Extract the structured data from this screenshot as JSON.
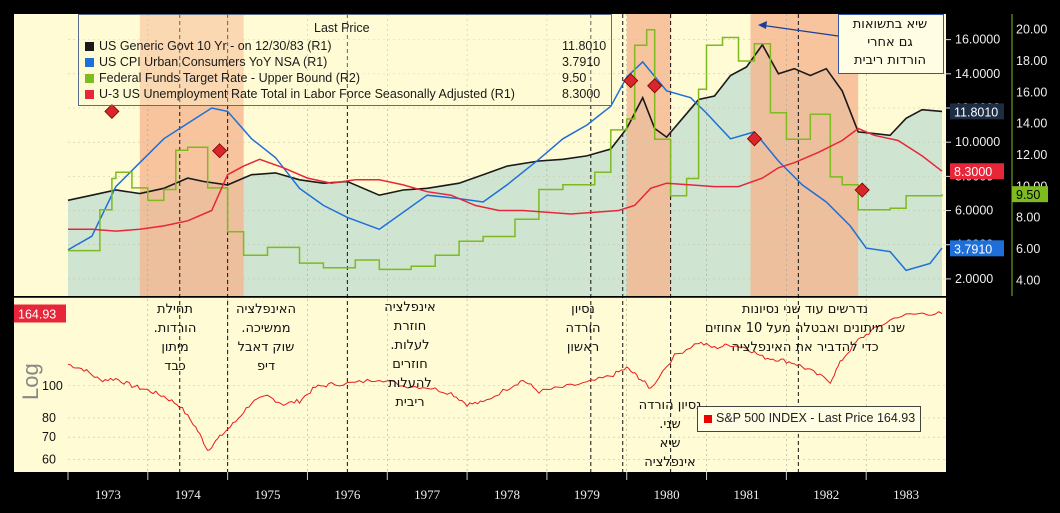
{
  "chart_data": [
    {
      "type": "line",
      "panel": "top",
      "legend_title": "Last Price",
      "x_range": [
        1973.0,
        1984.0
      ],
      "y_left": {
        "min": 1.0,
        "max": 17.5,
        "ticks": [
          "16.0000",
          "14.0000",
          "12.0000",
          "10.0000",
          "8.0000",
          "6.0000",
          "4.0000",
          "2.0000"
        ],
        "tick_values": [
          16,
          14,
          12,
          10,
          8,
          6,
          4,
          2
        ]
      },
      "y_right": {
        "min": 3.0,
        "max": 21.0,
        "ticks": [
          "20.00",
          "18.00",
          "16.00",
          "14.00",
          "12.00",
          "10.00",
          "8.00",
          "6.00",
          "4.00"
        ],
        "tick_values": [
          20,
          18,
          16,
          14,
          12,
          10,
          8,
          6,
          4
        ]
      },
      "recession_bands": [
        [
          1973.9,
          1975.2
        ],
        [
          1980.0,
          1980.55
        ],
        [
          1981.55,
          1982.9
        ]
      ],
      "series": [
        {
          "name": "US Generic Govt 10 Yr - on 12/30/83  (R1)",
          "value_label": "11.8010",
          "color": "#1a1a1a",
          "axis": "left",
          "x": [
            1973.0,
            1973.3,
            1973.6,
            1973.9,
            1974.2,
            1974.5,
            1974.7,
            1975.0,
            1975.3,
            1975.6,
            1975.9,
            1976.2,
            1976.5,
            1976.9,
            1977.2,
            1977.5,
            1977.9,
            1978.2,
            1978.5,
            1978.9,
            1979.2,
            1979.5,
            1979.8,
            1980.0,
            1980.2,
            1980.35,
            1980.5,
            1980.7,
            1980.9,
            1981.1,
            1981.3,
            1981.5,
            1981.7,
            1981.9,
            1982.1,
            1982.3,
            1982.5,
            1982.7,
            1982.9,
            1983.1,
            1983.3,
            1983.5,
            1983.7,
            1983.95
          ],
          "y": [
            6.6,
            6.9,
            7.2,
            7.0,
            7.3,
            7.9,
            7.7,
            7.5,
            8.1,
            8.2,
            7.8,
            7.6,
            7.7,
            6.9,
            7.2,
            7.3,
            7.6,
            8.1,
            8.6,
            8.9,
            9.0,
            9.2,
            9.6,
            10.8,
            12.6,
            10.8,
            10.3,
            11.4,
            12.5,
            12.7,
            13.9,
            14.4,
            15.7,
            14.0,
            14.3,
            13.9,
            14.3,
            13.0,
            10.6,
            10.5,
            10.4,
            11.4,
            11.9,
            11.8
          ]
        },
        {
          "name": "US CPI Urban Consumers YoY NSA  (R1)",
          "value_label": "3.7910",
          "color": "#1e6fd9",
          "axis": "left",
          "x": [
            1973.0,
            1973.3,
            1973.6,
            1973.9,
            1974.2,
            1974.5,
            1974.8,
            1975.0,
            1975.3,
            1975.6,
            1975.9,
            1976.2,
            1976.5,
            1976.9,
            1977.2,
            1977.5,
            1977.9,
            1978.2,
            1978.5,
            1978.9,
            1979.2,
            1979.5,
            1979.8,
            1980.0,
            1980.2,
            1980.5,
            1980.8,
            1981.0,
            1981.3,
            1981.6,
            1981.9,
            1982.2,
            1982.5,
            1982.8,
            1983.0,
            1983.3,
            1983.5,
            1983.8,
            1983.95
          ],
          "y": [
            3.7,
            4.5,
            7.4,
            8.8,
            10.2,
            11.1,
            12.0,
            11.8,
            10.2,
            9.1,
            7.3,
            6.3,
            5.6,
            4.9,
            5.9,
            6.9,
            6.7,
            6.5,
            7.5,
            9.0,
            10.2,
            11.0,
            12.1,
            13.8,
            14.7,
            13.0,
            12.6,
            11.7,
            10.2,
            10.6,
            8.9,
            7.5,
            6.5,
            5.1,
            3.8,
            3.6,
            2.5,
            2.9,
            3.8
          ]
        },
        {
          "name": "Federal Funds Target Rate - Upper Bound  (R2)",
          "value_label": "9.50",
          "color": "#7dbb1e",
          "axis": "right",
          "x": [
            1973.0,
            1973.4,
            1973.55,
            1973.6,
            1973.8,
            1974.0,
            1974.2,
            1974.35,
            1974.5,
            1974.75,
            1975.0,
            1975.2,
            1975.5,
            1975.9,
            1976.2,
            1976.6,
            1976.9,
            1977.3,
            1977.6,
            1977.9,
            1978.2,
            1978.6,
            1978.9,
            1979.2,
            1979.6,
            1979.8,
            1980.0,
            1980.1,
            1980.25,
            1980.35,
            1980.55,
            1980.75,
            1980.9,
            1981.0,
            1981.2,
            1981.4,
            1981.6,
            1981.8,
            1982.0,
            1982.3,
            1982.55,
            1982.7,
            1982.9,
            1983.0,
            1983.3,
            1983.5,
            1983.95
          ],
          "y": [
            5.9,
            8.5,
            10.5,
            10.9,
            9.9,
            9.1,
            9.8,
            12.3,
            12.5,
            9.9,
            7.1,
            5.6,
            6.1,
            5.1,
            4.8,
            5.3,
            4.7,
            4.9,
            5.6,
            6.5,
            6.8,
            7.9,
            9.8,
            10.1,
            10.9,
            13.6,
            14.3,
            19.0,
            20.0,
            13.0,
            9.4,
            10.5,
            16.2,
            19.0,
            19.5,
            18.0,
            19.1,
            14.7,
            13.0,
            14.6,
            10.6,
            10.1,
            8.5,
            8.5,
            8.6,
            9.4,
            9.5
          ]
        },
        {
          "name": "U-3 US Unemployment Rate Total in Labor Force Seasonally Adjusted  (R1)",
          "value_label": "8.3000",
          "color": "#e8263a",
          "axis": "left",
          "x": [
            1973.0,
            1973.3,
            1973.6,
            1973.9,
            1974.2,
            1974.5,
            1974.8,
            1975.0,
            1975.2,
            1975.4,
            1975.7,
            1976.0,
            1976.3,
            1976.6,
            1976.9,
            1977.2,
            1977.5,
            1977.8,
            1978.1,
            1978.4,
            1978.7,
            1979.0,
            1979.3,
            1979.6,
            1979.9,
            1980.1,
            1980.3,
            1980.5,
            1980.8,
            1981.1,
            1981.4,
            1981.7,
            1981.9,
            1982.1,
            1982.4,
            1982.7,
            1982.9,
            1983.1,
            1983.4,
            1983.7,
            1983.95
          ],
          "y": [
            4.9,
            4.9,
            4.8,
            4.9,
            5.1,
            5.4,
            6.0,
            8.1,
            8.6,
            9.0,
            8.5,
            7.9,
            7.6,
            7.8,
            7.8,
            7.5,
            7.1,
            6.9,
            6.3,
            6.0,
            6.0,
            5.9,
            5.8,
            5.9,
            6.0,
            6.3,
            7.3,
            7.6,
            7.5,
            7.4,
            7.4,
            7.9,
            8.5,
            8.8,
            9.4,
            10.1,
            10.8,
            10.4,
            10.1,
            9.2,
            8.3
          ]
        }
      ]
    },
    {
      "type": "line",
      "panel": "bottom",
      "log_scale": true,
      "axis_label": "Log",
      "x_range": [
        1973.0,
        1984.0
      ],
      "y": {
        "min": 55,
        "max": 185,
        "ticks": [
          "100",
          "80",
          "70",
          "60"
        ],
        "tick_values": [
          100,
          80,
          70,
          60
        ]
      },
      "current_value_label": "164.93",
      "series": [
        {
          "name": "S&P 500 INDEX - Last Price 164.93",
          "color": "#e81c1c",
          "x": [
            1973.0,
            1973.2,
            1973.4,
            1973.6,
            1973.8,
            1974.0,
            1974.2,
            1974.4,
            1974.6,
            1974.75,
            1974.9,
            1975.1,
            1975.3,
            1975.5,
            1975.7,
            1975.9,
            1976.1,
            1976.3,
            1976.6,
            1976.9,
            1977.2,
            1977.5,
            1977.8,
            1978.0,
            1978.2,
            1978.5,
            1978.7,
            1978.9,
            1979.2,
            1979.5,
            1979.8,
            1980.0,
            1980.15,
            1980.3,
            1980.6,
            1980.9,
            1981.1,
            1981.3,
            1981.5,
            1981.7,
            1981.9,
            1982.1,
            1982.3,
            1982.55,
            1982.7,
            1982.9,
            1983.1,
            1983.4,
            1983.7,
            1983.95
          ],
          "y": [
            116,
            112,
            104,
            105,
            100,
            97,
            93,
            87,
            75,
            64,
            70,
            78,
            89,
            93,
            88,
            90,
            99,
            101,
            102,
            105,
            100,
            99,
            95,
            88,
            89,
            98,
            104,
            96,
            99,
            102,
            107,
            113,
            106,
            98,
            123,
            135,
            130,
            133,
            130,
            122,
            120,
            117,
            111,
            103,
            120,
            137,
            148,
            162,
            165,
            165
          ]
        }
      ],
      "years": [
        "1973",
        "1974",
        "1975",
        "1976",
        "1977",
        "1978",
        "1979",
        "1980",
        "1981",
        "1982",
        "1983"
      ]
    }
  ],
  "annotations": {
    "callout": "שיא בתשואות\nגם אחרי\nהורדות ריבית",
    "a1974": "תחילת\nהורדות.\nמיתון\nכבד",
    "a1975": "האינפלציה\nממשיכה.\nשוק דאבל\nדיפ",
    "a1977": "אינפלציה\nחוזרת\nלעלות.\nחוזרים\nלהעלות\nריבית",
    "a1979": "נסיון\nהורדה\nראשון",
    "a1980": "נסיון הורדה\nשני.\nשיא\nאינפלציה",
    "a1982": "נדרשים עוד שני נסיונות\nשני מיתונים ואבטלה מעל 10 אחוזים\nכדי להדביר את האינפלציה"
  },
  "colors": {
    "panel_bg": "#fffbd5",
    "area_fill": "#cfe5d2",
    "recession": "#f5b58e",
    "axis_bg": "#000000"
  }
}
